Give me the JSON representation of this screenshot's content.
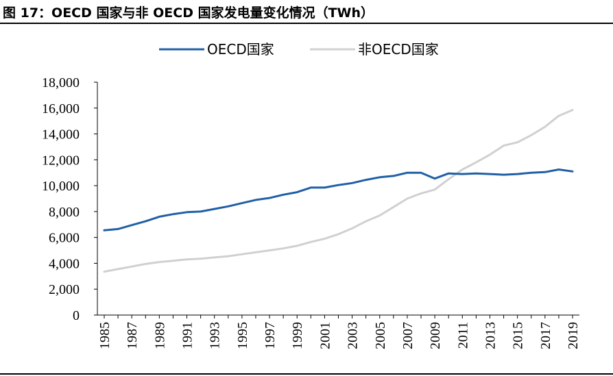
{
  "figure": {
    "title": "图 17：OECD 国家与非 OECD 国家发电量变化情况（TWh）"
  },
  "chart_data": {
    "type": "line",
    "title": "图 17：OECD 国家与非 OECD 国家发电量变化情况（TWh）",
    "xlabel": "",
    "ylabel": "",
    "ylim": [
      0,
      18000
    ],
    "yticks": [
      0,
      2000,
      4000,
      6000,
      8000,
      10000,
      12000,
      14000,
      16000,
      18000
    ],
    "ytick_labels": [
      "0",
      "2,000",
      "4,000",
      "6,000",
      "8,000",
      "10,000",
      "12,000",
      "14,000",
      "16,000",
      "18,000"
    ],
    "x": [
      1985,
      1986,
      1987,
      1988,
      1989,
      1990,
      1991,
      1992,
      1993,
      1994,
      1995,
      1996,
      1997,
      1998,
      1999,
      2000,
      2001,
      2002,
      2003,
      2004,
      2005,
      2006,
      2007,
      2008,
      2009,
      2010,
      2011,
      2012,
      2013,
      2014,
      2015,
      2016,
      2017,
      2018,
      2019
    ],
    "xtick_labels": [
      "1985",
      "1987",
      "1989",
      "1991",
      "1993",
      "1995",
      "1997",
      "1999",
      "2001",
      "2003",
      "2005",
      "2007",
      "2009",
      "2011",
      "2013",
      "2015",
      "2017",
      "2019"
    ],
    "grid": false,
    "legend_position": "top-center",
    "series": [
      {
        "name": "OECD国家",
        "color": "#1f5fa6",
        "values": [
          6550,
          6650,
          6950,
          7250,
          7600,
          7800,
          7950,
          8000,
          8200,
          8400,
          8650,
          8900,
          9050,
          9300,
          9500,
          9850,
          9850,
          10050,
          10200,
          10450,
          10650,
          10750,
          11000,
          11000,
          10550,
          10950,
          10900,
          10950,
          10900,
          10850,
          10900,
          11000,
          11050,
          11250,
          11100
        ]
      },
      {
        "name": "非OECD国家",
        "color": "#d0d0d0",
        "values": [
          3350,
          3550,
          3750,
          3950,
          4100,
          4200,
          4300,
          4350,
          4450,
          4550,
          4700,
          4850,
          5000,
          5150,
          5350,
          5650,
          5900,
          6250,
          6700,
          7250,
          7700,
          8350,
          9000,
          9400,
          9700,
          10500,
          11250,
          11800,
          12400,
          13100,
          13350,
          13900,
          14550,
          15400,
          15850
        ]
      }
    ]
  }
}
